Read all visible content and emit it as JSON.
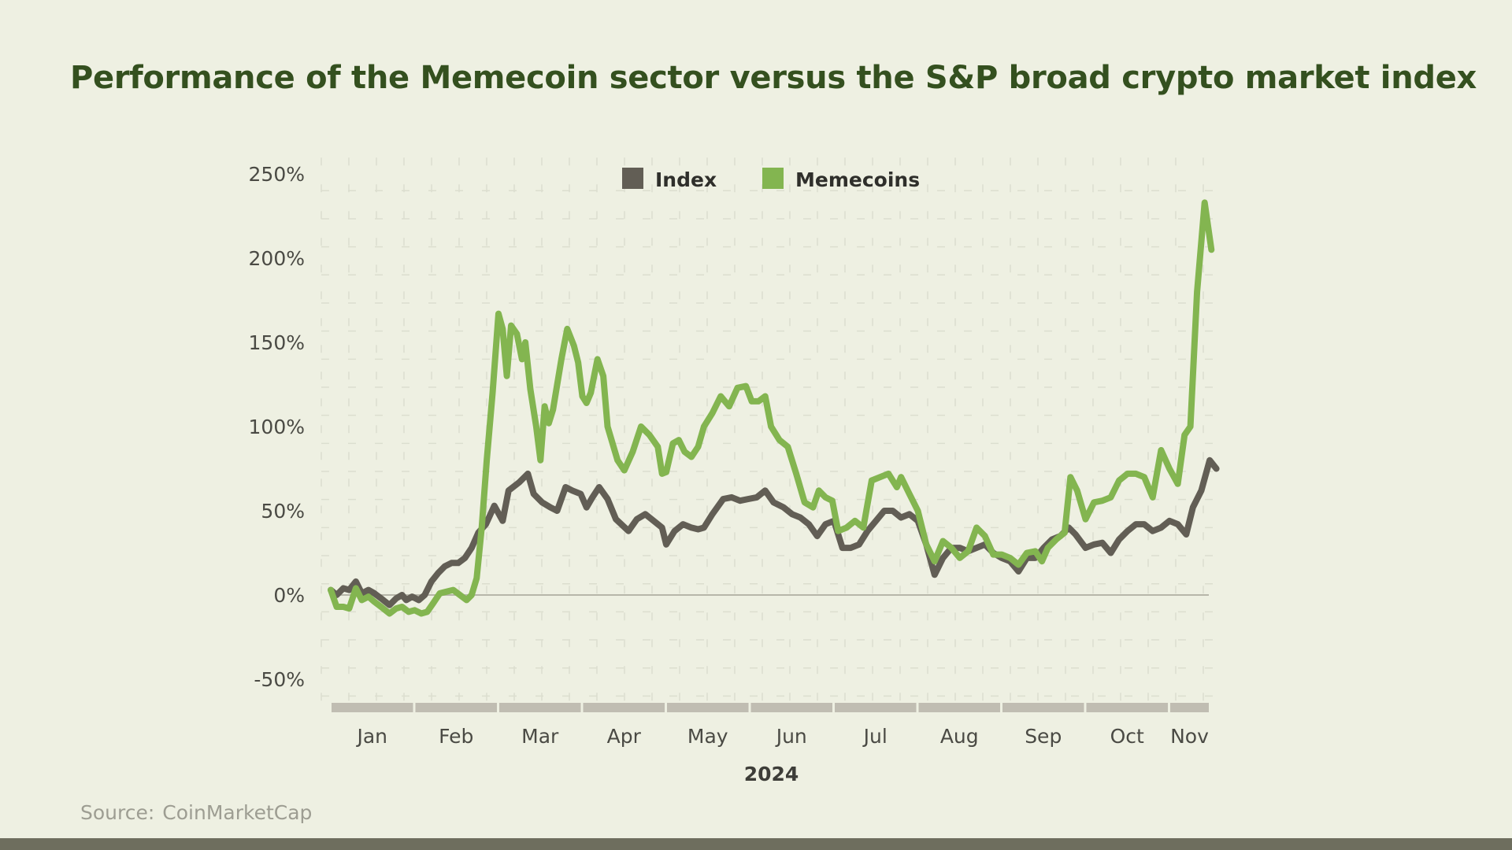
{
  "title": "Performance of the Memecoin sector versus the S&P broad crypto market index",
  "source_label": "Source:",
  "source_value": "CoinMarketCap",
  "chart_data": {
    "type": "line",
    "title": "Performance of the Memecoin sector versus the S&P broad crypto market index",
    "xlabel": "2024",
    "ylabel": "",
    "ylim": [
      -60,
      255
    ],
    "yticks": [
      -50,
      0,
      50,
      100,
      150,
      200,
      250
    ],
    "ytick_labels": [
      "-50%",
      "0%",
      "50%",
      "100%",
      "150%",
      "200%",
      "250%"
    ],
    "months": [
      "Jan",
      "Feb",
      "Mar",
      "Apr",
      "May",
      "Jun",
      "Jul",
      "Aug",
      "Sep",
      "Oct",
      "Nov"
    ],
    "x_unit": "months since Jan 1, 2024",
    "grid": true,
    "legend_position": "top-center",
    "colors": {
      "Index": "#625e55",
      "Memecoins": "#83b550",
      "background": "#eef0e2",
      "month_bar": "#c0bdb2"
    },
    "series": [
      {
        "name": "Index",
        "color": "#625e55",
        "points": [
          [
            0.0,
            3
          ],
          [
            0.07,
            0
          ],
          [
            0.15,
            4
          ],
          [
            0.22,
            3
          ],
          [
            0.3,
            8
          ],
          [
            0.37,
            1
          ],
          [
            0.45,
            3
          ],
          [
            0.52,
            1
          ],
          [
            0.6,
            -2
          ],
          [
            0.7,
            -6
          ],
          [
            0.78,
            -2
          ],
          [
            0.85,
            0
          ],
          [
            0.9,
            -3
          ],
          [
            0.97,
            -1
          ],
          [
            1.05,
            -3
          ],
          [
            1.12,
            0
          ],
          [
            1.2,
            8
          ],
          [
            1.28,
            13
          ],
          [
            1.36,
            17
          ],
          [
            1.44,
            19
          ],
          [
            1.52,
            19
          ],
          [
            1.6,
            22
          ],
          [
            1.68,
            28
          ],
          [
            1.76,
            37
          ],
          [
            1.85,
            42
          ],
          [
            1.95,
            53
          ],
          [
            2.05,
            44
          ],
          [
            2.12,
            62
          ],
          [
            2.25,
            67
          ],
          [
            2.35,
            72
          ],
          [
            2.42,
            60
          ],
          [
            2.52,
            55
          ],
          [
            2.62,
            52
          ],
          [
            2.7,
            50
          ],
          [
            2.8,
            64
          ],
          [
            2.88,
            62
          ],
          [
            2.98,
            60
          ],
          [
            3.05,
            52
          ],
          [
            3.12,
            58
          ],
          [
            3.2,
            64
          ],
          [
            3.3,
            57
          ],
          [
            3.4,
            45
          ],
          [
            3.55,
            38
          ],
          [
            3.65,
            45
          ],
          [
            3.75,
            48
          ],
          [
            3.85,
            44
          ],
          [
            3.95,
            40
          ],
          [
            4.0,
            30
          ],
          [
            4.1,
            38
          ],
          [
            4.2,
            42
          ],
          [
            4.3,
            40
          ],
          [
            4.38,
            39
          ],
          [
            4.45,
            40
          ],
          [
            4.55,
            48
          ],
          [
            4.68,
            57
          ],
          [
            4.78,
            58
          ],
          [
            4.88,
            56
          ],
          [
            4.98,
            57
          ],
          [
            5.08,
            58
          ],
          [
            5.18,
            62
          ],
          [
            5.28,
            55
          ],
          [
            5.4,
            52
          ],
          [
            5.5,
            48
          ],
          [
            5.6,
            46
          ],
          [
            5.7,
            42
          ],
          [
            5.8,
            35
          ],
          [
            5.9,
            42
          ],
          [
            6.0,
            44
          ],
          [
            6.1,
            28
          ],
          [
            6.2,
            28
          ],
          [
            6.3,
            30
          ],
          [
            6.4,
            38
          ],
          [
            6.5,
            44
          ],
          [
            6.6,
            50
          ],
          [
            6.7,
            50
          ],
          [
            6.8,
            46
          ],
          [
            6.9,
            48
          ],
          [
            7.0,
            44
          ],
          [
            7.1,
            30
          ],
          [
            7.2,
            12
          ],
          [
            7.3,
            22
          ],
          [
            7.4,
            28
          ],
          [
            7.5,
            28
          ],
          [
            7.6,
            26
          ],
          [
            7.7,
            28
          ],
          [
            7.8,
            30
          ],
          [
            7.9,
            25
          ],
          [
            8.0,
            22
          ],
          [
            8.1,
            20
          ],
          [
            8.2,
            14
          ],
          [
            8.3,
            22
          ],
          [
            8.4,
            22
          ],
          [
            8.5,
            28
          ],
          [
            8.6,
            33
          ],
          [
            8.7,
            35
          ],
          [
            8.8,
            40
          ],
          [
            8.88,
            36
          ],
          [
            9.0,
            28
          ],
          [
            9.1,
            30
          ],
          [
            9.2,
            31
          ],
          [
            9.3,
            25
          ],
          [
            9.4,
            33
          ],
          [
            9.5,
            38
          ],
          [
            9.6,
            42
          ],
          [
            9.7,
            42
          ],
          [
            9.8,
            38
          ],
          [
            9.9,
            40
          ],
          [
            10.0,
            44
          ],
          [
            10.1,
            42
          ],
          [
            10.2,
            36
          ],
          [
            10.28,
            52
          ],
          [
            10.38,
            62
          ],
          [
            10.48,
            80
          ],
          [
            10.56,
            75
          ]
        ]
      },
      {
        "name": "Memecoins",
        "color": "#83b550",
        "points": [
          [
            0.0,
            3
          ],
          [
            0.07,
            -7
          ],
          [
            0.15,
            -7
          ],
          [
            0.22,
            -8
          ],
          [
            0.3,
            4
          ],
          [
            0.37,
            -3
          ],
          [
            0.45,
            -1
          ],
          [
            0.52,
            -4
          ],
          [
            0.6,
            -7
          ],
          [
            0.7,
            -11
          ],
          [
            0.78,
            -8
          ],
          [
            0.85,
            -7
          ],
          [
            0.93,
            -10
          ],
          [
            1.0,
            -9
          ],
          [
            1.08,
            -11
          ],
          [
            1.15,
            -10
          ],
          [
            1.22,
            -5
          ],
          [
            1.3,
            1
          ],
          [
            1.38,
            2
          ],
          [
            1.46,
            3
          ],
          [
            1.54,
            0
          ],
          [
            1.62,
            -3
          ],
          [
            1.68,
            0
          ],
          [
            1.74,
            10
          ],
          [
            1.8,
            40
          ],
          [
            1.86,
            80
          ],
          [
            1.93,
            120
          ],
          [
            2.0,
            167
          ],
          [
            2.05,
            158
          ],
          [
            2.1,
            130
          ],
          [
            2.15,
            160
          ],
          [
            2.22,
            155
          ],
          [
            2.28,
            140
          ],
          [
            2.32,
            150
          ],
          [
            2.38,
            122
          ],
          [
            2.45,
            100
          ],
          [
            2.5,
            80
          ],
          [
            2.55,
            112
          ],
          [
            2.6,
            102
          ],
          [
            2.65,
            110
          ],
          [
            2.75,
            140
          ],
          [
            2.82,
            158
          ],
          [
            2.9,
            148
          ],
          [
            2.95,
            138
          ],
          [
            3.0,
            118
          ],
          [
            3.05,
            114
          ],
          [
            3.1,
            120
          ],
          [
            3.18,
            140
          ],
          [
            3.25,
            130
          ],
          [
            3.3,
            100
          ],
          [
            3.42,
            80
          ],
          [
            3.5,
            74
          ],
          [
            3.6,
            85
          ],
          [
            3.7,
            100
          ],
          [
            3.8,
            95
          ],
          [
            3.9,
            88
          ],
          [
            3.95,
            72
          ],
          [
            4.0,
            73
          ],
          [
            4.08,
            90
          ],
          [
            4.15,
            92
          ],
          [
            4.22,
            85
          ],
          [
            4.3,
            82
          ],
          [
            4.38,
            88
          ],
          [
            4.45,
            100
          ],
          [
            4.55,
            108
          ],
          [
            4.65,
            118
          ],
          [
            4.75,
            112
          ],
          [
            4.85,
            123
          ],
          [
            4.95,
            124
          ],
          [
            5.02,
            115
          ],
          [
            5.1,
            115
          ],
          [
            5.18,
            118
          ],
          [
            5.25,
            100
          ],
          [
            5.35,
            92
          ],
          [
            5.45,
            88
          ],
          [
            5.55,
            72
          ],
          [
            5.65,
            55
          ],
          [
            5.75,
            52
          ],
          [
            5.82,
            62
          ],
          [
            5.9,
            58
          ],
          [
            5.98,
            56
          ],
          [
            6.05,
            38
          ],
          [
            6.15,
            40
          ],
          [
            6.25,
            44
          ],
          [
            6.35,
            40
          ],
          [
            6.45,
            68
          ],
          [
            6.55,
            70
          ],
          [
            6.65,
            72
          ],
          [
            6.75,
            64
          ],
          [
            6.8,
            70
          ],
          [
            6.9,
            60
          ],
          [
            7.0,
            50
          ],
          [
            7.1,
            30
          ],
          [
            7.2,
            20
          ],
          [
            7.3,
            32
          ],
          [
            7.4,
            28
          ],
          [
            7.5,
            22
          ],
          [
            7.6,
            26
          ],
          [
            7.7,
            40
          ],
          [
            7.8,
            35
          ],
          [
            7.9,
            24
          ],
          [
            8.0,
            24
          ],
          [
            8.1,
            22
          ],
          [
            8.2,
            18
          ],
          [
            8.3,
            25
          ],
          [
            8.4,
            26
          ],
          [
            8.48,
            20
          ],
          [
            8.55,
            28
          ],
          [
            8.65,
            33
          ],
          [
            8.75,
            37
          ],
          [
            8.82,
            70
          ],
          [
            8.9,
            62
          ],
          [
            9.0,
            45
          ],
          [
            9.1,
            55
          ],
          [
            9.2,
            56
          ],
          [
            9.3,
            58
          ],
          [
            9.4,
            68
          ],
          [
            9.5,
            72
          ],
          [
            9.6,
            72
          ],
          [
            9.7,
            70
          ],
          [
            9.8,
            58
          ],
          [
            9.9,
            86
          ],
          [
            10.0,
            75
          ],
          [
            10.1,
            66
          ],
          [
            10.18,
            95
          ],
          [
            10.25,
            100
          ],
          [
            10.33,
            180
          ],
          [
            10.42,
            233
          ],
          [
            10.5,
            205
          ]
        ]
      }
    ]
  }
}
